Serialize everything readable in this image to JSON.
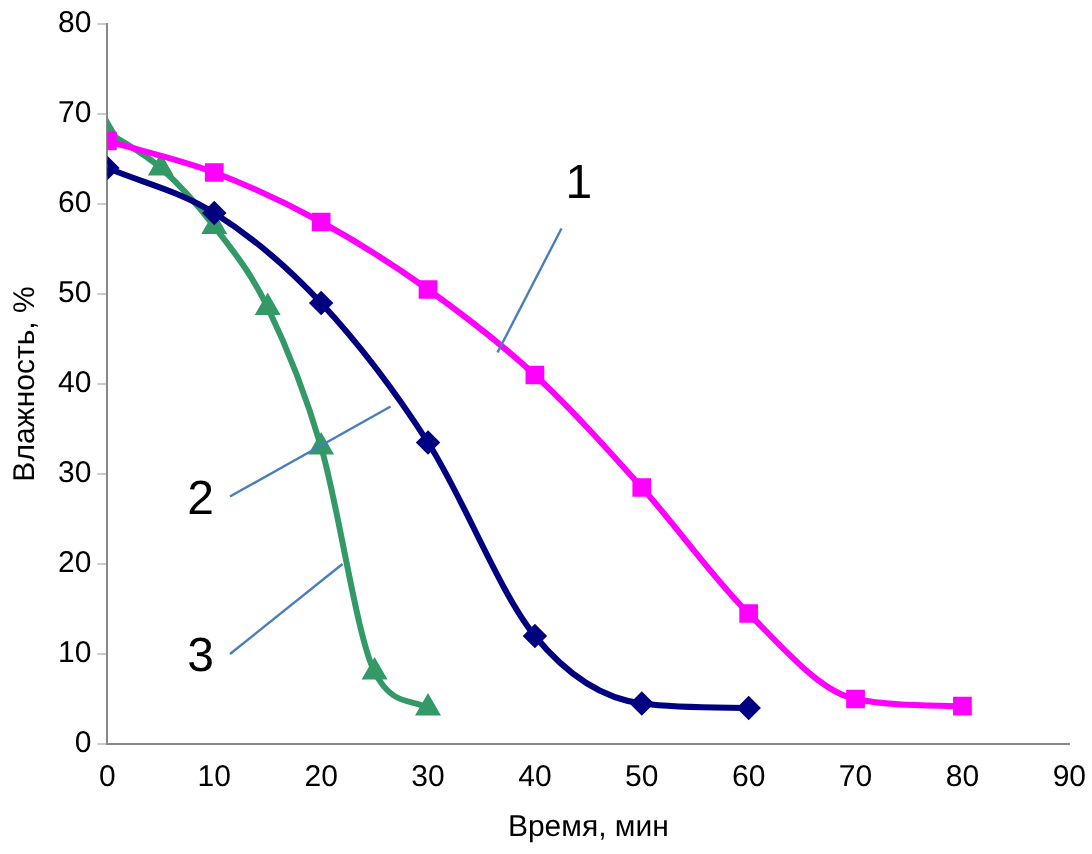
{
  "chart_data": {
    "type": "line",
    "xlabel": "Время, мин",
    "ylabel": "Влажность, %",
    "xlim": [
      0,
      90
    ],
    "xticks": [
      0,
      10,
      20,
      30,
      40,
      50,
      60,
      70,
      80,
      90
    ],
    "ylim": [
      0,
      80
    ],
    "yticks": [
      0,
      10,
      20,
      30,
      40,
      50,
      60,
      70,
      80
    ],
    "grid": false,
    "legend": false,
    "series": [
      {
        "color": "#ff00ff",
        "marker": "square",
        "x": [
          0,
          10,
          20,
          30,
          40,
          50,
          60,
          70,
          80
        ],
        "values": [
          67,
          63.5,
          58,
          50.5,
          41,
          28.5,
          14.5,
          5,
          4.2
        ]
      },
      {
        "color": "#000080",
        "marker": "diamond",
        "x": [
          0,
          10,
          20,
          30,
          40,
          50,
          60
        ],
        "values": [
          64,
          59,
          49,
          33.5,
          12,
          4.5,
          4
        ]
      },
      {
        "color": "#339966",
        "marker": "triangle",
        "x": [
          0,
          5,
          10,
          15,
          20,
          25,
          30
        ],
        "values": [
          68,
          64,
          57.5,
          48.5,
          33,
          8,
          4
        ]
      }
    ],
    "annotations": [
      {
        "text": "1",
        "x": 36.5,
        "y": 43.5
      },
      {
        "text": "2",
        "x": 26.5,
        "y": 37.5
      },
      {
        "text": "3",
        "x": 22,
        "y": 20
      }
    ]
  }
}
